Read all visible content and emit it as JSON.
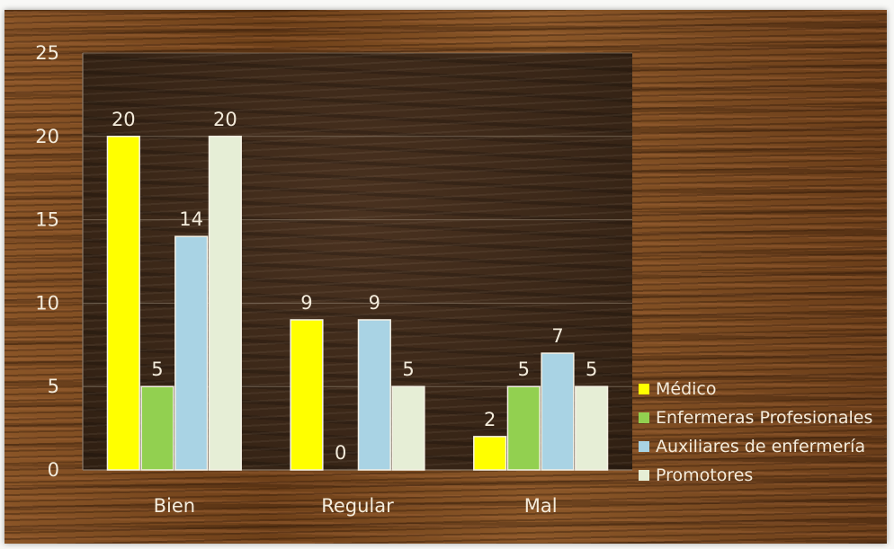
{
  "chart_data": {
    "type": "bar",
    "categories": [
      "Bien",
      "Regular",
      "Mal"
    ],
    "series": [
      {
        "name": "Médico",
        "color": "#ffff00",
        "values": [
          20,
          9,
          2
        ]
      },
      {
        "name": "Enfermeras Profesionales",
        "color": "#92d050",
        "values": [
          5,
          0,
          5
        ]
      },
      {
        "name": "Auxiliares de enfermería",
        "color": "#a9d3e4",
        "values": [
          14,
          9,
          7
        ]
      },
      {
        "name": "Promotores",
        "color": "#e6eed6",
        "values": [
          20,
          5,
          5
        ]
      }
    ],
    "yticks": [
      "0",
      "5",
      "10",
      "15",
      "20",
      "25"
    ],
    "ylim": [
      0,
      25
    ],
    "title": "",
    "xlabel": "",
    "ylabel": "",
    "grid": true,
    "legend": "right",
    "data_labels": true
  }
}
